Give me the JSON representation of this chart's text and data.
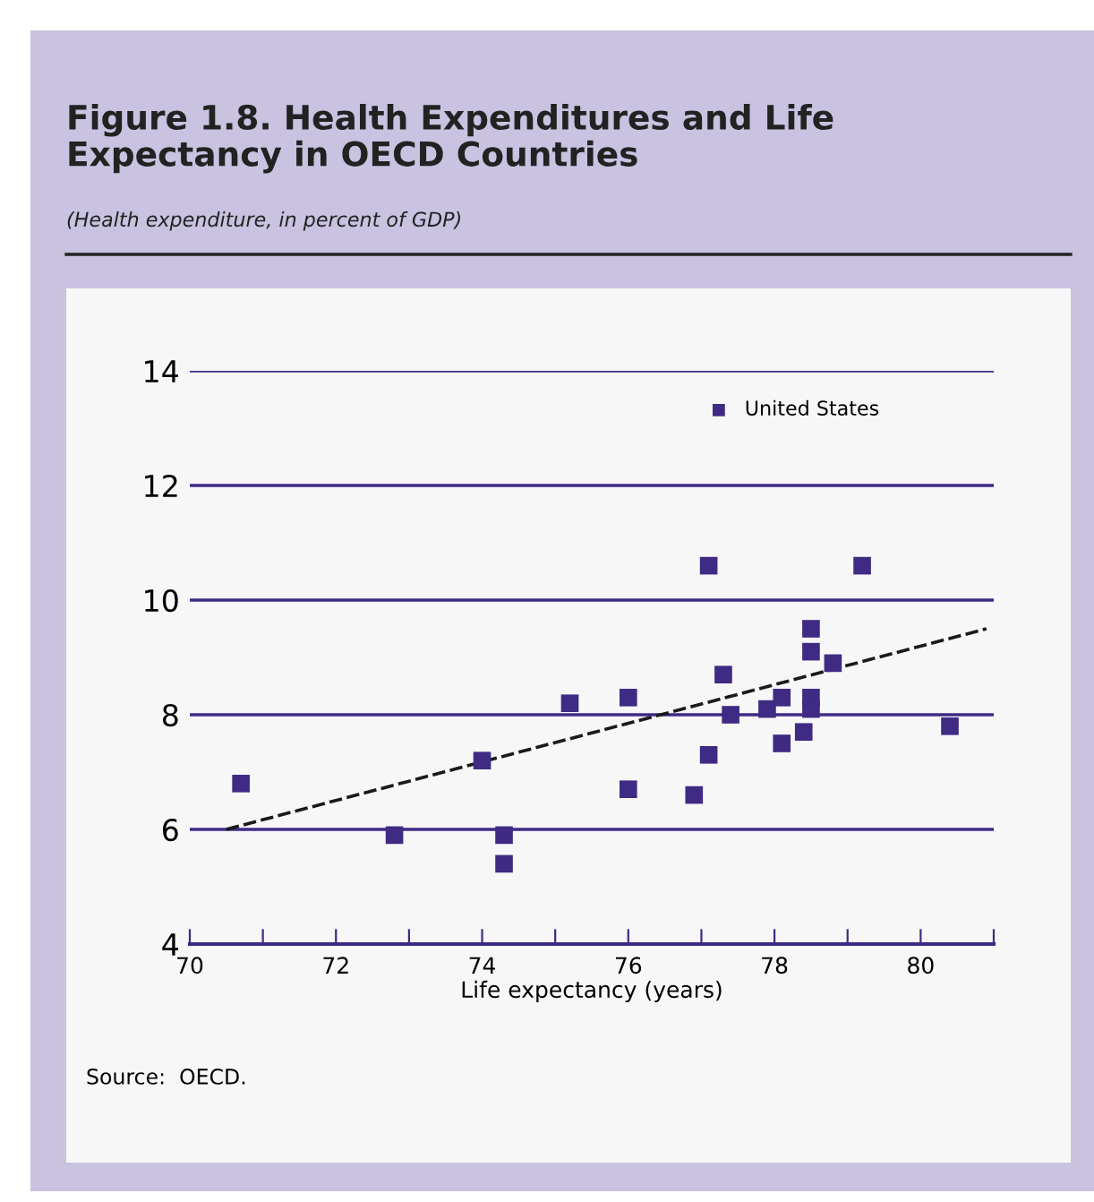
{
  "chart_data": {
    "type": "scatter",
    "title": "Figure 1.8. Health Expenditures and Life\nExpectancy in OECD Countries",
    "subtitle": "(Health expenditure, in percent of GDP)",
    "xlabel": "Life expectancy (years)",
    "annotations": [
      "Source:  OECD."
    ],
    "xlim": [
      70,
      81
    ],
    "ylim": [
      4,
      14
    ],
    "xticks": [
      70,
      {
        "value": 71,
        "label": null
      },
      72,
      {
        "value": 73,
        "label": null
      },
      74,
      {
        "value": 75,
        "label": null
      },
      76,
      {
        "value": 77,
        "label": null
      },
      78,
      {
        "value": 79,
        "label": null
      },
      80,
      {
        "value": 81,
        "label": null
      }
    ],
    "yticks": [
      4,
      6,
      8,
      10,
      12,
      14
    ],
    "grid": "y",
    "legend": "top right",
    "series": [
      {
        "name": "United States",
        "color": "#3f2a84",
        "marker": "square",
        "x": [
          70.7,
          72.8,
          74.0,
          74.3,
          74.3,
          75.2,
          76.0,
          76.0,
          77.1,
          77.3,
          77.1,
          76.9,
          77.4,
          77.9,
          78.1,
          78.5,
          78.5,
          78.1,
          78.4,
          78.5,
          78.5,
          78.8,
          79.2,
          80.4
        ],
        "values": [
          6.8,
          5.9,
          7.2,
          5.9,
          5.4,
          8.2,
          8.3,
          6.7,
          10.6,
          8.7,
          7.3,
          6.6,
          8.0,
          8.1,
          8.3,
          8.3,
          8.1,
          7.5,
          7.7,
          9.5,
          9.1,
          8.9,
          10.6,
          7.8
        ]
      },
      {
        "type": "line",
        "color": "#1a1a1a",
        "x": [
          70.5,
          80.9
        ],
        "values": [
          6.0,
          9.5
        ],
        "line_style": "dashed"
      }
    ]
  }
}
